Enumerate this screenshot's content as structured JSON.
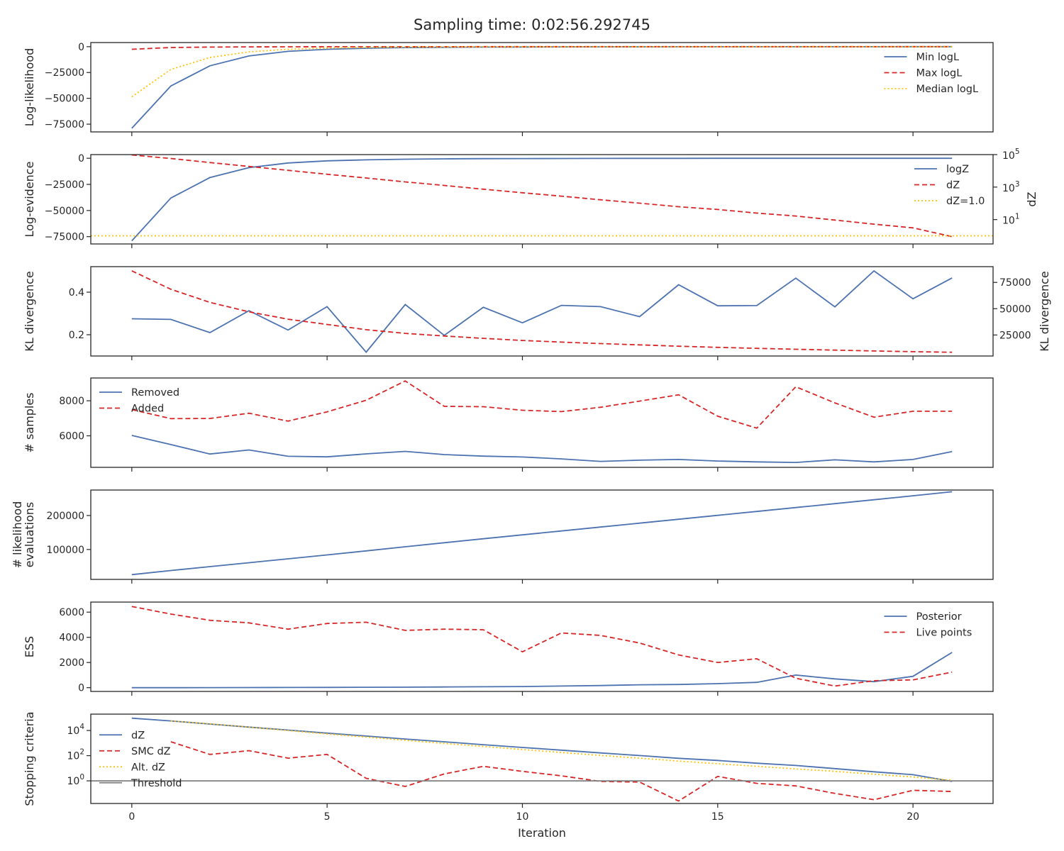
{
  "title": "Sampling time: 0:02:56.292745",
  "colors": {
    "blue": "#4c72b0",
    "red": "#d62728",
    "yellow": "#ffc107",
    "gray": "#7f7f7f",
    "frame": "#262626"
  },
  "chart_data": [
    {
      "type": "line",
      "ylabel": [
        "Log-likelihood"
      ],
      "xlim": [
        -1.05,
        22.05
      ],
      "ylim": [
        -82500,
        4000
      ],
      "yticks": [
        0,
        -25000,
        -50000,
        -75000
      ],
      "ytick_labels": [
        "0",
        "−25000",
        "−50000",
        "−75000"
      ],
      "legend": "upper-right",
      "series": [
        {
          "name": "Min logL",
          "color": "blue",
          "dash": "solid",
          "x": [
            0,
            1,
            2,
            3,
            4,
            5,
            6,
            7,
            8,
            9,
            10,
            11,
            12,
            13,
            14,
            15,
            16,
            17,
            18,
            19,
            20,
            21
          ],
          "y": [
            -79000,
            -38000,
            -18500,
            -9000,
            -4500,
            -2500,
            -1500,
            -900,
            -600,
            -400,
            -300,
            -200,
            -150,
            -100,
            -80,
            -60,
            -50,
            -40,
            -30,
            -20,
            -10,
            -5
          ]
        },
        {
          "name": "Max logL",
          "color": "red",
          "dash": "dashed",
          "x": [
            0,
            1,
            2,
            3,
            4,
            5,
            6,
            7,
            8,
            9,
            10,
            11,
            12,
            13,
            14,
            15,
            16,
            17,
            18,
            19,
            20,
            21
          ],
          "y": [
            -2500,
            -800,
            -400,
            -200,
            -100,
            -60,
            -40,
            -30,
            -20,
            -10,
            -5,
            -5,
            -5,
            -5,
            -5,
            -5,
            -5,
            -5,
            -5,
            -5,
            -5,
            -5
          ]
        },
        {
          "name": "Median logL",
          "color": "yellow",
          "dash": "dotted",
          "x": [
            0,
            1,
            2,
            3,
            4,
            5,
            6,
            7,
            8,
            9,
            10,
            11,
            12,
            13,
            14,
            15,
            16,
            17,
            18,
            19,
            20,
            21
          ],
          "y": [
            -48500,
            -22000,
            -10500,
            -5000,
            -2500,
            -1300,
            -700,
            -400,
            -250,
            -150,
            -100,
            -70,
            -50,
            -40,
            -30,
            -20,
            -15,
            -10,
            -8,
            -6,
            -5,
            -4
          ]
        }
      ]
    },
    {
      "type": "line",
      "ylabel": [
        "Log-evidence"
      ],
      "ylabel_right": "dZ",
      "xlim": [
        -1.05,
        22.05
      ],
      "ylim": [
        -82000,
        3500
      ],
      "yticks": [
        0,
        -25000,
        -50000,
        -75000
      ],
      "ytick_labels": [
        "0",
        "−25000",
        "−50000",
        "−75000"
      ],
      "y2_scale": "log",
      "y2_log_range": [
        -0.5,
        5.0
      ],
      "y2_ticks": [
        {
          "log": 5,
          "base": "10",
          "exp": "5"
        },
        {
          "log": 3,
          "base": "10",
          "exp": "3"
        },
        {
          "log": 1,
          "base": "10",
          "exp": "1"
        }
      ],
      "legend": "upper-right",
      "series": [
        {
          "name": "logZ",
          "color": "blue",
          "dash": "solid",
          "axis": "left",
          "x": [
            0,
            1,
            2,
            3,
            4,
            5,
            6,
            7,
            8,
            9,
            10,
            11,
            12,
            13,
            14,
            15,
            16,
            17,
            18,
            19,
            20,
            21
          ],
          "y": [
            -79000,
            -38000,
            -18500,
            -9000,
            -4500,
            -2500,
            -1500,
            -900,
            -600,
            -400,
            -300,
            -200,
            -150,
            -100,
            -80,
            -60,
            -50,
            -40,
            -30,
            -20,
            -10,
            -5
          ]
        },
        {
          "name": "dZ",
          "color": "red",
          "dash": "dashed",
          "axis": "right",
          "x": [
            0,
            1,
            2,
            3,
            4,
            5,
            6,
            7,
            8,
            9,
            10,
            11,
            12,
            13,
            14,
            15,
            16,
            17,
            18,
            19,
            20,
            21
          ],
          "y": [
            4.98,
            4.76,
            4.51,
            4.27,
            4.03,
            3.79,
            3.56,
            3.32,
            3.1,
            2.87,
            2.65,
            2.44,
            2.22,
            2.01,
            1.79,
            1.62,
            1.4,
            1.22,
            0.97,
            0.72,
            0.49,
            -0.05
          ]
        },
        {
          "name": "dZ=1.0",
          "color": "yellow",
          "dash": "dotted",
          "axis": "right",
          "x": [
            -1.05,
            22.05
          ],
          "y": [
            0,
            0
          ]
        }
      ]
    },
    {
      "type": "line",
      "ylabel": [
        "KL divergence"
      ],
      "ylabel_right": "KL divergence",
      "xlim": [
        -1.05,
        22.05
      ],
      "ylim": [
        0.1,
        0.52
      ],
      "yticks": [
        0.4,
        0.2
      ],
      "ytick_labels": [
        "0.4",
        "0.2"
      ],
      "y2_ylim": [
        5000,
        90000
      ],
      "y2_ticks": [
        75000,
        50000,
        25000
      ],
      "y2_tick_labels": [
        "75000",
        "50000",
        "25000"
      ],
      "legend": "none",
      "series": [
        {
          "color": "blue",
          "dash": "solid",
          "axis": "left",
          "x": [
            0,
            1,
            2,
            3,
            4,
            5,
            6,
            7,
            8,
            9,
            10,
            11,
            12,
            13,
            14,
            15,
            16,
            17,
            18,
            19,
            20,
            21
          ],
          "y": [
            0.275,
            0.272,
            0.21,
            0.313,
            0.222,
            0.332,
            0.118,
            0.342,
            0.197,
            0.329,
            0.256,
            0.338,
            0.332,
            0.285,
            0.435,
            0.336,
            0.337,
            0.466,
            0.331,
            0.5,
            0.369,
            0.467
          ]
        },
        {
          "color": "red",
          "dash": "dashed",
          "axis": "right",
          "x": [
            0,
            1,
            2,
            3,
            4,
            5,
            6,
            7,
            8,
            9,
            10,
            11,
            12,
            13,
            14,
            15,
            16,
            17,
            18,
            19,
            20,
            21
          ],
          "y": [
            86000,
            68500,
            56000,
            47000,
            40000,
            35000,
            30000,
            26500,
            24000,
            21800,
            19800,
            18200,
            16800,
            15600,
            14300,
            13200,
            12300,
            11400,
            10600,
            9800,
            9100,
            8600
          ]
        }
      ]
    },
    {
      "type": "line",
      "ylabel": [
        "# samples"
      ],
      "xlim": [
        -1.05,
        22.05
      ],
      "ylim": [
        4200,
        9300
      ],
      "yticks": [
        8000,
        6000
      ],
      "ytick_labels": [
        "8000",
        "6000"
      ],
      "legend": "upper-left",
      "series": [
        {
          "name": "Removed",
          "color": "blue",
          "dash": "solid",
          "x": [
            0,
            1,
            2,
            3,
            4,
            5,
            6,
            7,
            8,
            9,
            10,
            11,
            12,
            13,
            14,
            15,
            16,
            17,
            18,
            19,
            20,
            21
          ],
          "y": [
            6020,
            5500,
            4960,
            5190,
            4830,
            4800,
            4970,
            5110,
            4930,
            4840,
            4790,
            4680,
            4540,
            4610,
            4650,
            4560,
            4510,
            4480,
            4630,
            4510,
            4650,
            5100
          ]
        },
        {
          "name": "Added",
          "color": "red",
          "dash": "dashed",
          "x": [
            0,
            1,
            2,
            3,
            4,
            5,
            6,
            7,
            8,
            9,
            10,
            11,
            12,
            13,
            14,
            15,
            16,
            17,
            18,
            19,
            20,
            21
          ],
          "y": [
            7500,
            6980,
            6990,
            7290,
            6840,
            7370,
            8030,
            9130,
            7680,
            7660,
            7460,
            7380,
            7630,
            7980,
            8340,
            7120,
            6440,
            8800,
            7880,
            7060,
            7400,
            7400
          ]
        }
      ]
    },
    {
      "type": "line",
      "ylabel": [
        "# likelihood",
        "evaluations"
      ],
      "xlim": [
        -1.05,
        22.05
      ],
      "ylim": [
        12000,
        275000
      ],
      "yticks": [
        200000,
        100000
      ],
      "ytick_labels": [
        "200000",
        "100000"
      ],
      "legend": "none",
      "series": [
        {
          "color": "blue",
          "dash": "solid",
          "x": [
            0,
            1,
            2,
            3,
            4,
            5,
            6,
            7,
            8,
            9,
            10,
            11,
            12,
            13,
            14,
            15,
            16,
            17,
            18,
            19,
            20,
            21
          ],
          "y": [
            26000,
            38000,
            49500,
            61000,
            72500,
            84000,
            96000,
            108000,
            120000,
            131500,
            143000,
            154500,
            166000,
            177500,
            189000,
            200500,
            212000,
            223500,
            235000,
            246500,
            258000,
            270000
          ]
        }
      ]
    },
    {
      "type": "line",
      "ylabel": [
        "ESS"
      ],
      "xlim": [
        -1.05,
        22.05
      ],
      "ylim": [
        -300,
        6800
      ],
      "yticks": [
        6000,
        4000,
        2000,
        0
      ],
      "ytick_labels": [
        "6000",
        "4000",
        "2000",
        "0"
      ],
      "legend": "upper-right",
      "series": [
        {
          "name": "Posterior",
          "color": "blue",
          "dash": "solid",
          "x": [
            0,
            1,
            2,
            3,
            4,
            5,
            6,
            7,
            8,
            9,
            10,
            11,
            12,
            13,
            14,
            15,
            16,
            17,
            18,
            19,
            20,
            21
          ],
          "y": [
            0,
            0,
            5,
            10,
            15,
            20,
            30,
            40,
            55,
            70,
            90,
            130,
            170,
            230,
            250,
            320,
            420,
            1000,
            700,
            480,
            900,
            2800
          ]
        },
        {
          "name": "Live points",
          "color": "red",
          "dash": "dashed",
          "x": [
            0,
            1,
            2,
            3,
            4,
            5,
            6,
            7,
            8,
            9,
            10,
            11,
            12,
            13,
            14,
            15,
            16,
            17,
            18,
            19,
            20,
            21
          ],
          "y": [
            6450,
            5850,
            5350,
            5150,
            4650,
            5100,
            5200,
            4550,
            4650,
            4600,
            2850,
            4350,
            4150,
            3550,
            2600,
            2000,
            2300,
            750,
            130,
            550,
            620,
            1230
          ]
        }
      ]
    },
    {
      "type": "line",
      "ylabel": [
        "Stopping criteria"
      ],
      "xlabel": "Iteration",
      "xlim": [
        -1.05,
        22.05
      ],
      "y_scale": "log",
      "y_log_range": [
        -1.8,
        5.3
      ],
      "yticks": [
        {
          "log": 4,
          "base": "10",
          "exp": "4"
        },
        {
          "log": 2,
          "base": "10",
          "exp": "2"
        },
        {
          "log": 0,
          "base": "10",
          "exp": "0"
        }
      ],
      "xticks": [
        0,
        5,
        10,
        15,
        20
      ],
      "xtick_labels": [
        "0",
        "5",
        "10",
        "15",
        "20"
      ],
      "legend": "center-left",
      "series": [
        {
          "name": "dZ",
          "color": "blue",
          "dash": "solid",
          "x": [
            0,
            1,
            2,
            3,
            4,
            5,
            6,
            7,
            8,
            9,
            10,
            11,
            12,
            13,
            14,
            15,
            16,
            17,
            18,
            19,
            20,
            21
          ],
          "y": [
            4.98,
            4.76,
            4.51,
            4.27,
            4.03,
            3.79,
            3.56,
            3.32,
            3.1,
            2.87,
            2.65,
            2.44,
            2.22,
            2.01,
            1.79,
            1.62,
            1.4,
            1.22,
            0.97,
            0.72,
            0.49,
            -0.05
          ]
        },
        {
          "name": "SMC dZ",
          "color": "red",
          "dash": "dashed",
          "x": [
            1,
            2,
            3,
            4,
            5,
            6,
            7,
            8,
            9,
            10,
            11,
            12,
            13,
            14,
            15,
            16,
            17,
            18,
            19,
            20,
            21
          ],
          "y": [
            3.1,
            2.1,
            2.4,
            1.8,
            2.1,
            0.2,
            -0.45,
            0.55,
            1.15,
            0.75,
            0.4,
            -0.05,
            -0.1,
            -1.6,
            0.35,
            -0.2,
            -0.4,
            -1.0,
            -1.5,
            -0.75,
            -0.85
          ]
        },
        {
          "name": "Alt. dZ",
          "color": "yellow",
          "dash": "dotted",
          "x": [
            1,
            2,
            3,
            4,
            5,
            6,
            7,
            8,
            9,
            10,
            11,
            12,
            13,
            14,
            15,
            16,
            17,
            18,
            19,
            20,
            21
          ],
          "y": [
            4.76,
            4.53,
            4.27,
            4.0,
            3.73,
            3.48,
            3.22,
            2.97,
            2.73,
            2.49,
            2.25,
            2.02,
            1.8,
            1.57,
            1.36,
            1.15,
            0.95,
            0.75,
            0.53,
            0.3,
            0.05
          ]
        },
        {
          "name": "Threshold",
          "color": "gray",
          "dash": "solid",
          "x": [
            -1.05,
            22.05
          ],
          "y": [
            0,
            0
          ]
        }
      ]
    }
  ]
}
